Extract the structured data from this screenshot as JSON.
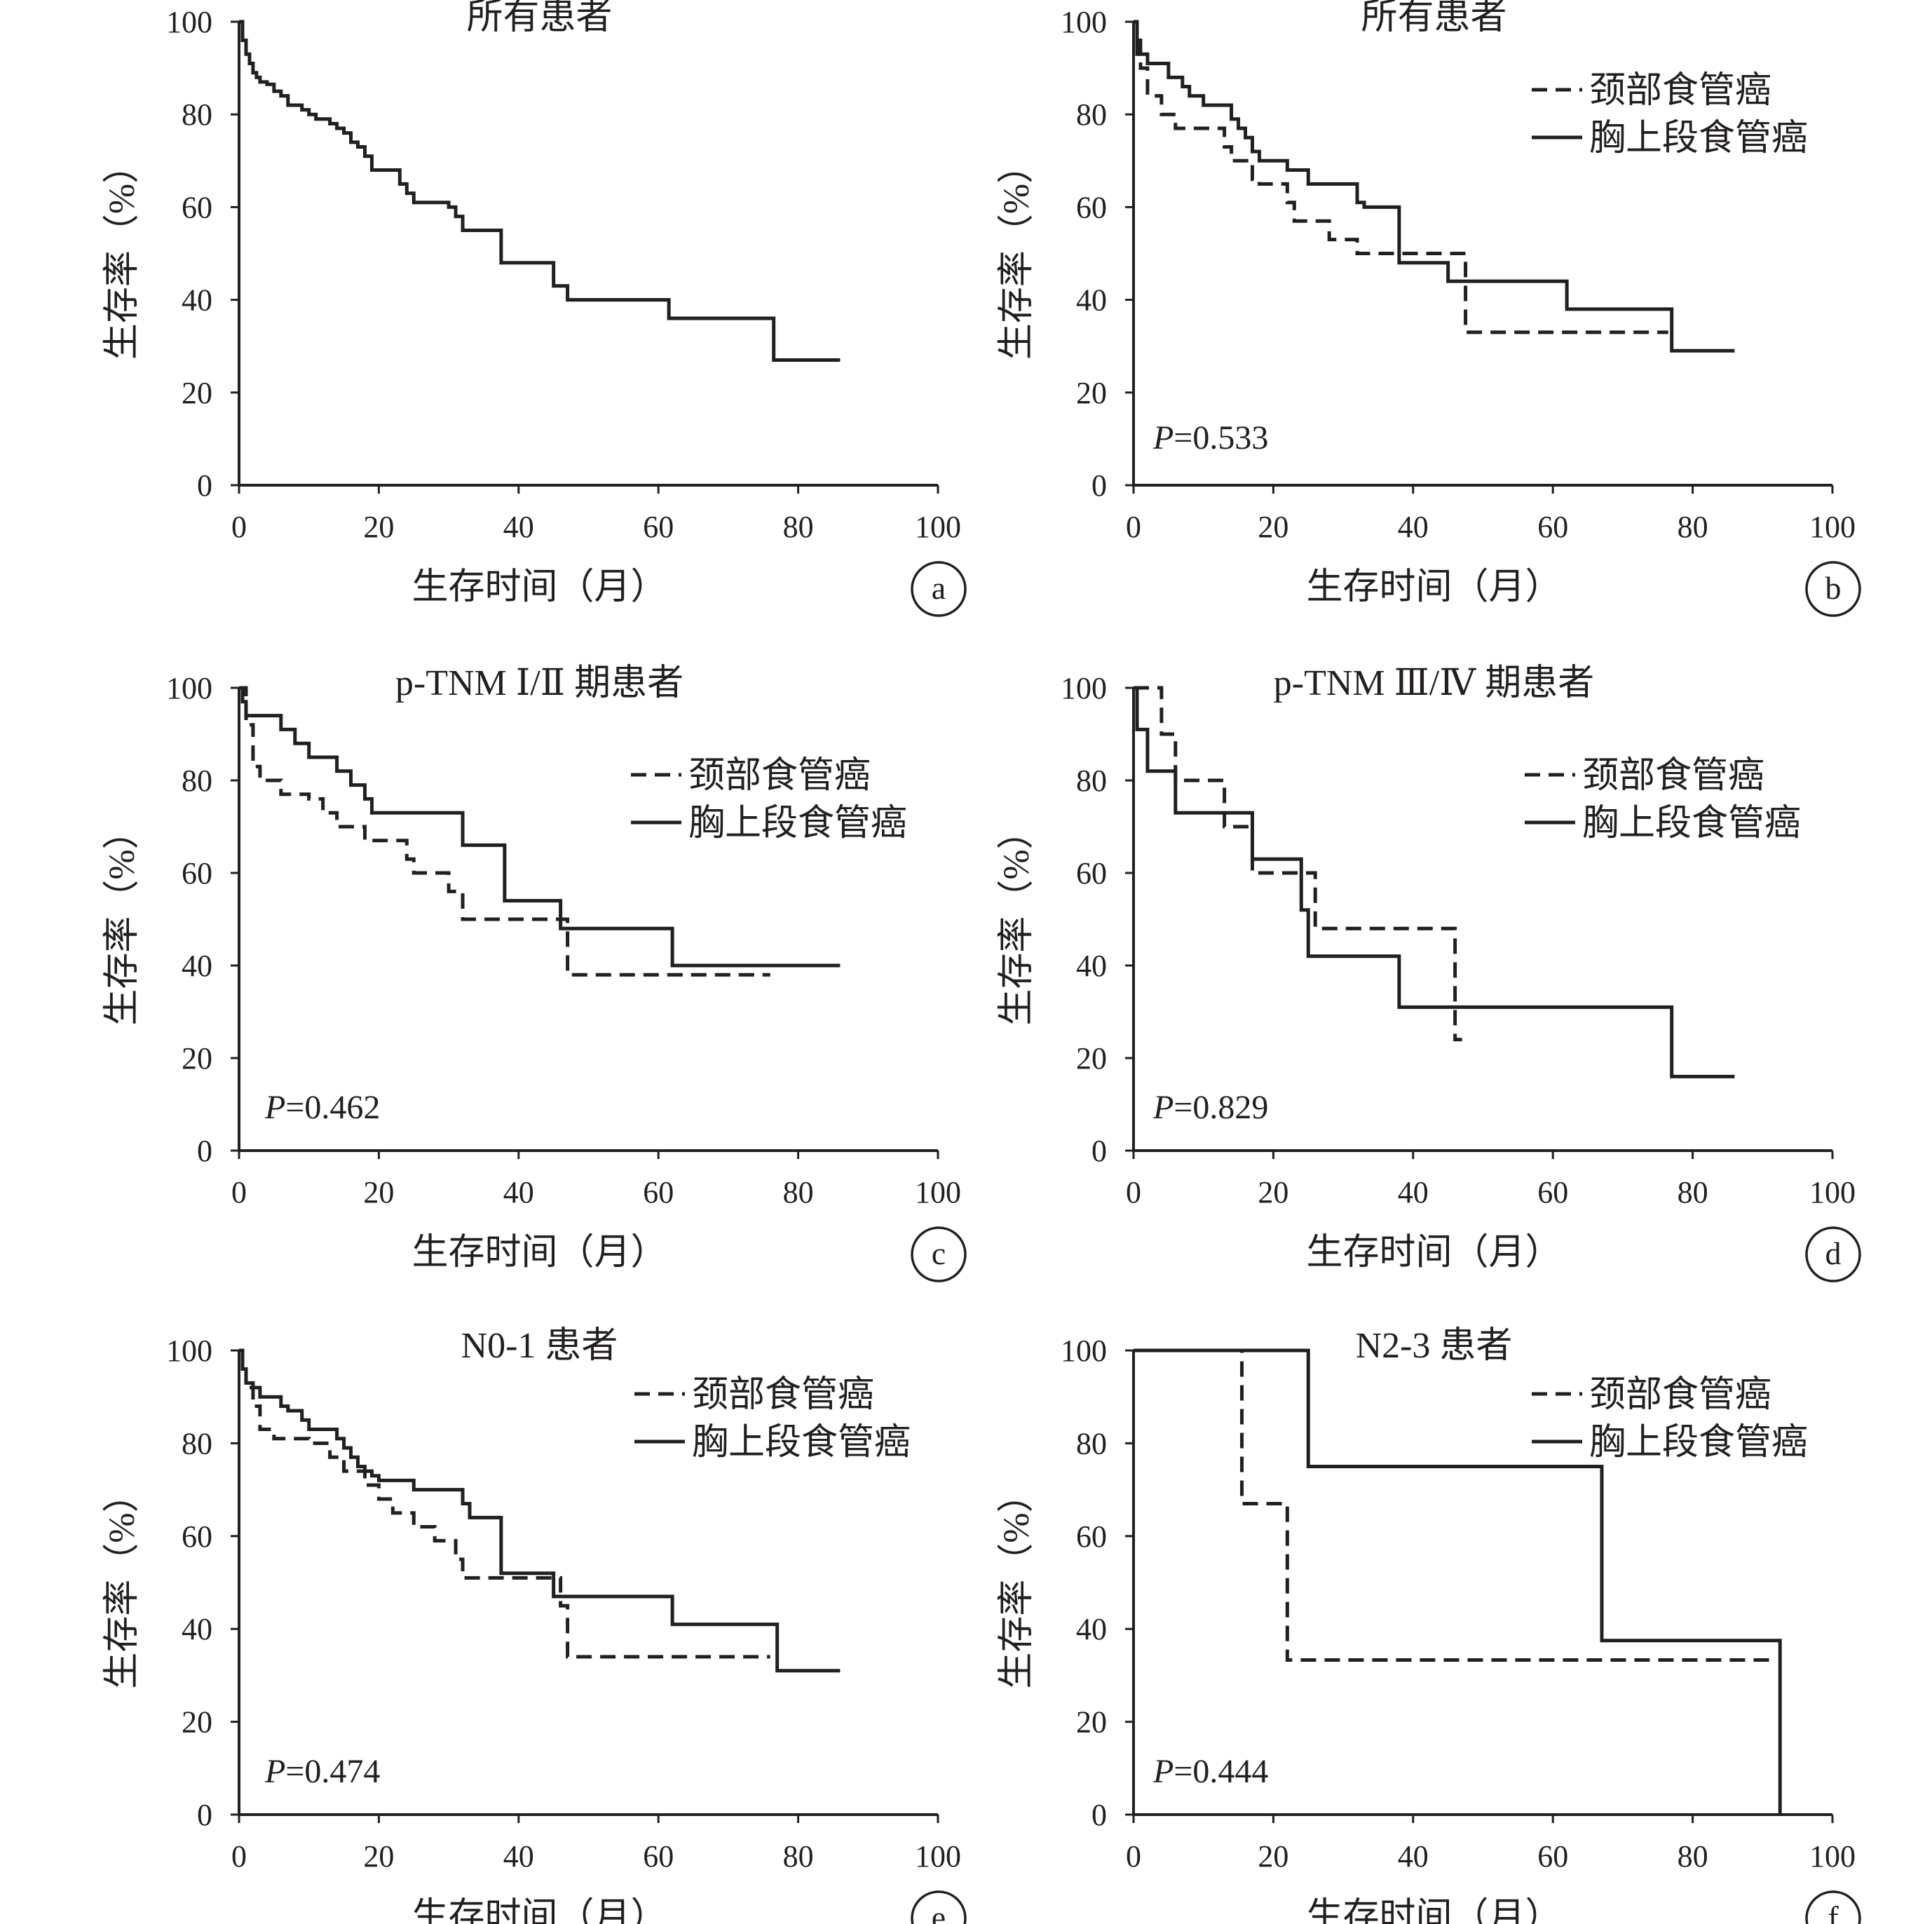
{
  "chart_data": [
    {
      "id": "a",
      "type": "line",
      "title": "所有患者",
      "xlabel": "生存时间（月）",
      "ylabel": "生存率（%）",
      "xlim": [
        0,
        100
      ],
      "ylim": [
        0,
        100
      ],
      "xticks": [
        "0",
        "20",
        "40",
        "60",
        "80",
        "100"
      ],
      "yticks": [
        "0",
        "20",
        "40",
        "60",
        "80",
        "100"
      ],
      "p_value": "",
      "legend": [],
      "series": [
        {
          "style": "solid",
          "x": [
            0,
            0.5,
            1,
            1.5,
            2,
            2.5,
            3,
            4,
            5,
            6,
            7,
            8,
            9,
            10,
            11,
            12,
            13,
            14,
            15,
            16,
            17,
            18,
            19,
            20,
            21,
            22,
            23,
            24,
            25,
            26,
            27,
            28,
            30,
            31,
            32,
            33,
            35,
            36,
            37,
            37.5,
            38,
            40,
            42,
            45,
            46,
            47,
            48,
            50,
            55,
            60,
            61.5,
            62,
            70,
            76,
            76.5,
            86
          ],
          "y": [
            100,
            96,
            93,
            91,
            89,
            88,
            87,
            86.5,
            85,
            84,
            82,
            82,
            81,
            80,
            79,
            79,
            78,
            77,
            76,
            74,
            73,
            71,
            68,
            68,
            68,
            68,
            65,
            63,
            61,
            61,
            61,
            61,
            60,
            58,
            55,
            55,
            55,
            55,
            55,
            48,
            48,
            48,
            48,
            43,
            43,
            40,
            40,
            40,
            40,
            40,
            36,
            36,
            36,
            36,
            27,
            27
          ]
        }
      ]
    },
    {
      "id": "b",
      "type": "line",
      "title": "所有患者",
      "xlabel": "生存时间（月）",
      "ylabel": "生存率（%）",
      "xlim": [
        0,
        100
      ],
      "ylim": [
        0,
        100
      ],
      "xticks": [
        "0",
        "20",
        "40",
        "60",
        "80",
        "100"
      ],
      "yticks": [
        "0",
        "20",
        "40",
        "60",
        "80",
        "100"
      ],
      "p_value": "0.533",
      "legend": [
        "颈部食管癌",
        "胸上段食管癌"
      ],
      "series": [
        {
          "name": "颈部食管癌",
          "style": "dashed",
          "x": [
            0,
            0.5,
            1,
            2,
            4,
            6,
            8,
            12,
            13,
            14,
            17,
            18,
            22,
            23,
            25,
            28,
            30,
            32,
            36,
            38,
            44,
            47.5,
            76,
            76.5
          ],
          "y": [
            100,
            93,
            90,
            84,
            80,
            77,
            77,
            77,
            73,
            70,
            66,
            65,
            61,
            57,
            57,
            53,
            53,
            50,
            50,
            50,
            50,
            33,
            33,
            33
          ]
        },
        {
          "name": "胸上段食管癌",
          "style": "solid",
          "x": [
            0,
            0.5,
            1,
            2,
            3,
            5,
            7,
            8,
            9,
            10,
            13,
            14,
            15,
            16,
            17,
            18,
            19,
            20,
            22,
            24,
            25,
            32,
            33,
            37,
            38,
            45,
            46,
            62,
            63,
            76,
            77,
            86
          ],
          "y": [
            100,
            96,
            93,
            91,
            91,
            88,
            86,
            84,
            84,
            82,
            82,
            79,
            77,
            75,
            72,
            70,
            70,
            70,
            68,
            68,
            65,
            61,
            60,
            60,
            48,
            44,
            44,
            38,
            38,
            38,
            29,
            29
          ]
        }
      ]
    },
    {
      "id": "c",
      "type": "line",
      "title": "p-TNM Ⅰ/Ⅱ 期患者",
      "xlabel": "生存时间（月）",
      "ylabel": "生存率（%）",
      "xlim": [
        0,
        100
      ],
      "ylim": [
        0,
        100
      ],
      "xticks": [
        "0",
        "20",
        "40",
        "60",
        "80",
        "100"
      ],
      "yticks": [
        "0",
        "20",
        "40",
        "60",
        "80",
        "100"
      ],
      "p_value": "0.462",
      "legend": [
        "颈部食管癌",
        "胸上段食管癌"
      ],
      "series": [
        {
          "name": "颈部食管癌",
          "style": "dashed",
          "x": [
            0,
            1,
            2,
            3,
            6,
            7,
            10,
            12,
            14,
            15,
            18,
            20,
            24,
            25,
            30,
            31,
            32,
            36,
            40,
            47,
            48,
            76
          ],
          "y": [
            100,
            92,
            83,
            80,
            77,
            77,
            76,
            73,
            70,
            70,
            67,
            67,
            63,
            60,
            56,
            56,
            50,
            50,
            50,
            38,
            38,
            38
          ]
        },
        {
          "name": "胸上段食管癌",
          "style": "solid",
          "x": [
            0,
            0.5,
            1,
            2,
            5,
            6,
            8,
            10,
            13,
            14,
            16,
            18,
            19,
            20,
            31,
            32,
            37,
            38,
            45,
            46,
            61,
            62,
            86
          ],
          "y": [
            100,
            97,
            94,
            94,
            94,
            91,
            88,
            85,
            85,
            82,
            79,
            76,
            73,
            73,
            73,
            66,
            66,
            54,
            54,
            48,
            48,
            40,
            40
          ]
        }
      ]
    },
    {
      "id": "d",
      "type": "line",
      "title": "p-TNM Ⅲ/Ⅳ 期患者",
      "xlabel": "生存时间（月）",
      "ylabel": "生存率（%）",
      "xlim": [
        0,
        100
      ],
      "ylim": [
        0,
        100
      ],
      "xticks": [
        "0",
        "20",
        "40",
        "60",
        "80",
        "100"
      ],
      "yticks": [
        "0",
        "20",
        "40",
        "60",
        "80",
        "100"
      ],
      "p_value": "0.829",
      "legend": [
        "颈部食管癌",
        "胸上段食管癌"
      ],
      "series": [
        {
          "name": "颈部食管癌",
          "style": "dashed",
          "x": [
            0,
            4,
            5,
            6,
            13,
            14,
            17,
            20,
            25,
            26,
            30,
            45,
            46,
            47
          ],
          "y": [
            100,
            90,
            90,
            80,
            70,
            70,
            60,
            60,
            60,
            48,
            48,
            48,
            24,
            24
          ]
        },
        {
          "name": "胸上段食管癌",
          "style": "solid",
          "x": [
            0,
            0.5,
            2,
            5,
            6,
            16,
            17,
            23,
            24,
            25,
            37,
            38,
            76,
            77,
            86
          ],
          "y": [
            100,
            91,
            82,
            82,
            73,
            73,
            63,
            63,
            52,
            42,
            42,
            31,
            31,
            16,
            16
          ]
        }
      ]
    },
    {
      "id": "e",
      "type": "line",
      "title": "N0-1 患者",
      "xlabel": "生存时间（月）",
      "ylabel": "生存率（%）",
      "xlim": [
        0,
        100
      ],
      "ylim": [
        0,
        100
      ],
      "xticks": [
        "0",
        "20",
        "40",
        "60",
        "80",
        "100"
      ],
      "yticks": [
        "0",
        "20",
        "40",
        "60",
        "80",
        "100"
      ],
      "p_value": "0.474",
      "legend": [
        "颈部食管癌",
        "胸上段食管癌"
      ],
      "series": [
        {
          "name": "颈部食管癌",
          "style": "dashed",
          "x": [
            0,
            0.5,
            1,
            2,
            3,
            5,
            8,
            10,
            13,
            15,
            18,
            20,
            22,
            25,
            28,
            30,
            31,
            32,
            37,
            38,
            45,
            46,
            47,
            48,
            76
          ],
          "y": [
            100,
            96,
            92,
            88,
            83,
            81,
            81,
            80,
            77,
            74,
            71,
            68,
            65,
            62,
            59,
            59,
            55,
            51,
            51,
            51,
            51,
            45,
            34,
            34,
            34
          ]
        },
        {
          "name": "胸上段食管癌",
          "style": "solid",
          "x": [
            0,
            0.5,
            1,
            2,
            3,
            6,
            7,
            9,
            10,
            14,
            15,
            16,
            17,
            18,
            19,
            20,
            25,
            26,
            32,
            33,
            37,
            37.5,
            38,
            45,
            46,
            61,
            62,
            76,
            77,
            86
          ],
          "y": [
            100,
            96,
            93,
            92,
            90,
            88,
            87,
            85,
            83,
            81,
            79,
            77,
            75,
            74,
            73,
            72,
            70,
            70,
            67,
            64,
            64,
            52,
            52,
            47,
            47,
            47,
            41,
            41,
            31,
            31
          ]
        }
      ]
    },
    {
      "id": "f",
      "type": "line",
      "title": "N2-3 患者",
      "xlabel": "生存时间（月）",
      "ylabel": "生存率（%）",
      "xlim": [
        0,
        100
      ],
      "ylim": [
        0,
        100
      ],
      "xticks": [
        "0",
        "20",
        "40",
        "60",
        "80",
        "100"
      ],
      "yticks": [
        "0",
        "20",
        "40",
        "60",
        "80",
        "100"
      ],
      "p_value": "0.444",
      "legend": [
        "颈部食管癌",
        "胸上段食管癌"
      ],
      "series": [
        {
          "name": "颈部食管癌",
          "style": "dashed",
          "x": [
            0,
            15.5,
            22,
            91
          ],
          "y": [
            100,
            67,
            33.3,
            33.3
          ]
        },
        {
          "name": "胸上段食管癌",
          "style": "solid",
          "x": [
            0,
            25,
            67,
            92.5
          ],
          "y": [
            100,
            75,
            37.5,
            0
          ]
        }
      ]
    }
  ],
  "p_prefix": "P",
  "p_equals": "="
}
